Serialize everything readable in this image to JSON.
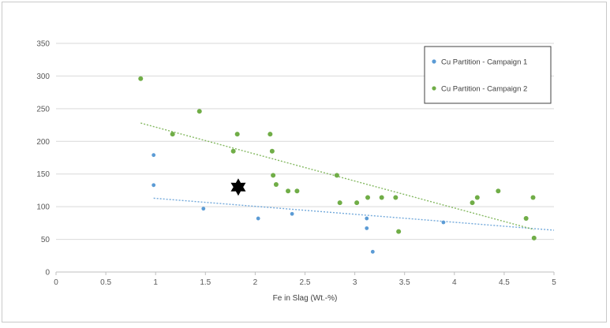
{
  "chart_data": {
    "type": "scatter",
    "title": "",
    "xlabel": "Fe in Slag (Wt.-%)",
    "ylabel": "",
    "xlim": [
      0,
      5
    ],
    "ylim": [
      0,
      350
    ],
    "x_ticks": [
      "0",
      "0.5",
      "1",
      "1.5",
      "2",
      "2.5",
      "3",
      "3.5",
      "4",
      "4.5",
      "5"
    ],
    "y_ticks": [
      "0",
      "50",
      "100",
      "150",
      "200",
      "250",
      "300",
      "350"
    ],
    "grid": "horizontal",
    "legend_position": "top-right",
    "series": [
      {
        "name": "Cu Partition - Campaign 1",
        "color": "#5b9bd5",
        "points": [
          [
            0.98,
            179
          ],
          [
            0.98,
            133
          ],
          [
            1.48,
            97
          ],
          [
            2.03,
            82
          ],
          [
            2.37,
            89
          ],
          [
            3.12,
            82
          ],
          [
            3.12,
            67
          ],
          [
            3.18,
            31
          ],
          [
            3.89,
            76
          ]
        ],
        "trendline": [
          [
            0.98,
            113
          ],
          [
            5.0,
            64
          ]
        ]
      },
      {
        "name": "Cu Partition - Campaign 2",
        "color": "#70ad47",
        "points": [
          [
            0.85,
            296
          ],
          [
            1.17,
            211
          ],
          [
            1.44,
            246
          ],
          [
            1.78,
            185
          ],
          [
            1.82,
            211
          ],
          [
            2.15,
            211
          ],
          [
            2.17,
            185
          ],
          [
            2.18,
            148
          ],
          [
            2.21,
            134
          ],
          [
            2.33,
            124
          ],
          [
            2.42,
            124
          ],
          [
            2.82,
            148
          ],
          [
            2.85,
            106
          ],
          [
            3.02,
            106
          ],
          [
            3.13,
            114
          ],
          [
            3.27,
            114
          ],
          [
            3.41,
            114
          ],
          [
            3.44,
            62
          ],
          [
            4.18,
            106
          ],
          [
            4.23,
            114
          ],
          [
            4.44,
            124
          ],
          [
            4.72,
            82
          ],
          [
            4.79,
            114
          ],
          [
            4.8,
            52
          ]
        ],
        "trendline": [
          [
            0.85,
            228
          ],
          [
            4.8,
            65
          ]
        ]
      }
    ],
    "annotations": [
      {
        "type": "star-marker",
        "color": "#000000",
        "x": 1.83,
        "y": 130
      }
    ]
  }
}
